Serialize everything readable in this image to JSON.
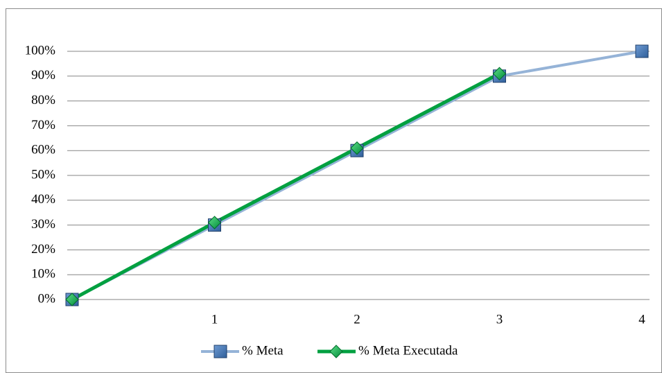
{
  "chart_data": {
    "type": "line",
    "x": [
      0,
      1,
      2,
      3,
      4
    ],
    "xlim": [
      0,
      4
    ],
    "xticks": [
      1,
      2,
      3,
      4
    ],
    "ylim": [
      0,
      100
    ],
    "yticks": [
      {
        "value": 0,
        "label": "0%"
      },
      {
        "value": 10,
        "label": "10%"
      },
      {
        "value": 20,
        "label": "20%"
      },
      {
        "value": 30,
        "label": "30%"
      },
      {
        "value": 40,
        "label": "40%"
      },
      {
        "value": 50,
        "label": "50%"
      },
      {
        "value": 60,
        "label": "60%"
      },
      {
        "value": 70,
        "label": "70%"
      },
      {
        "value": 80,
        "label": "80%"
      },
      {
        "value": 90,
        "label": "90%"
      },
      {
        "value": 100,
        "label": "100%"
      }
    ],
    "grid": true,
    "legend": "bottom",
    "series": [
      {
        "name": "% Meta",
        "color": "#95b3d7",
        "marker": "square",
        "marker_color": "#4f81bd",
        "values": [
          0,
          30,
          60,
          90,
          100
        ]
      },
      {
        "name": "% Meta Executada",
        "color": "#00a040",
        "marker": "diamond",
        "marker_color": "#00b050",
        "values": [
          0,
          31,
          61,
          91,
          null
        ]
      }
    ]
  }
}
